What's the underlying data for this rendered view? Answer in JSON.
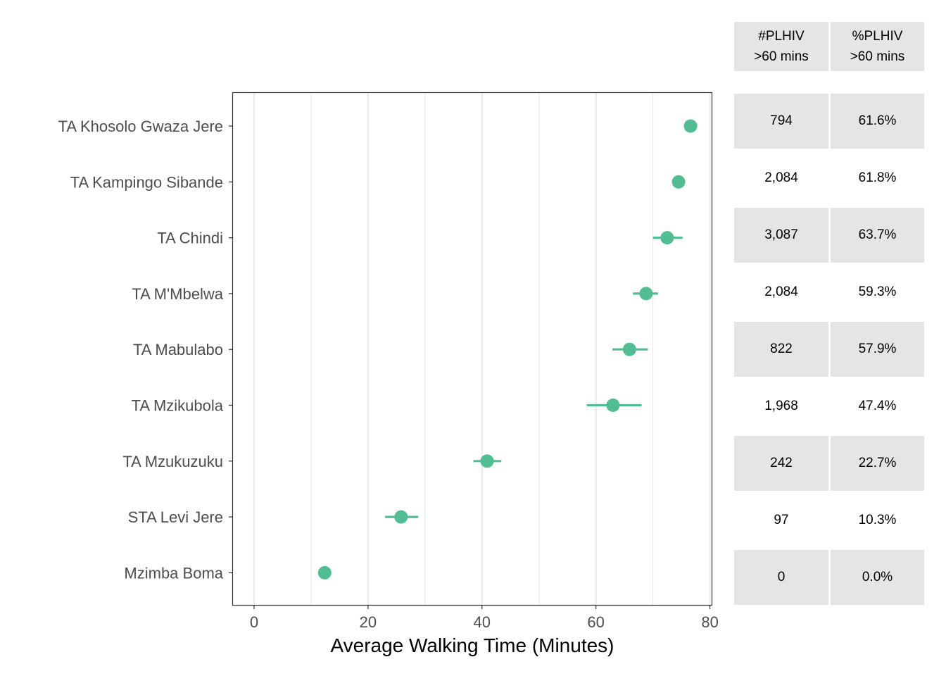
{
  "chart_data": {
    "type": "scatter",
    "xlabel": "Average Walking Time (Minutes)",
    "xlim": [
      -3.7,
      80.3
    ],
    "xticks": [
      0,
      20,
      40,
      60,
      80
    ],
    "grid": true,
    "categories": [
      "TA Khosolo Gwaza Jere",
      "TA Kampingo Sibande",
      "TA Chindi",
      "TA M'Mbelwa",
      "TA Mabulabo",
      "TA Mzikubola",
      "TA Mzukuzuku",
      "STA Levi Jere",
      "Mzimba Boma"
    ],
    "points": [
      {
        "estimate": 76.6,
        "low": null,
        "high": null
      },
      {
        "estimate": 74.5,
        "low": null,
        "high": null
      },
      {
        "estimate": 72.5,
        "low": 70.0,
        "high": 75.2
      },
      {
        "estimate": 68.8,
        "low": 66.5,
        "high": 70.9
      },
      {
        "estimate": 65.9,
        "low": 62.9,
        "high": 69.1
      },
      {
        "estimate": 63.0,
        "low": 58.4,
        "high": 68.0
      },
      {
        "estimate": 40.9,
        "low": 38.5,
        "high": 43.4
      },
      {
        "estimate": 25.8,
        "low": 23.0,
        "high": 28.8
      },
      {
        "estimate": 12.4,
        "low": null,
        "high": null
      }
    ],
    "color": "#52bc93"
  },
  "table": {
    "headers": [
      {
        "line1": "#PLHIV",
        "line2": ">60 mins"
      },
      {
        "line1": "%PLHIV",
        "line2": ">60 mins"
      }
    ],
    "rows": [
      [
        "794",
        "61.6%"
      ],
      [
        "2,084",
        "61.8%"
      ],
      [
        "3,087",
        "63.7%"
      ],
      [
        "2,084",
        "59.3%"
      ],
      [
        "822",
        "57.9%"
      ],
      [
        "1,968",
        "47.4%"
      ],
      [
        "242",
        "22.7%"
      ],
      [
        "97",
        "10.3%"
      ],
      [
        "0",
        "0.0%"
      ]
    ],
    "shade_color": "#e5e5e5"
  }
}
